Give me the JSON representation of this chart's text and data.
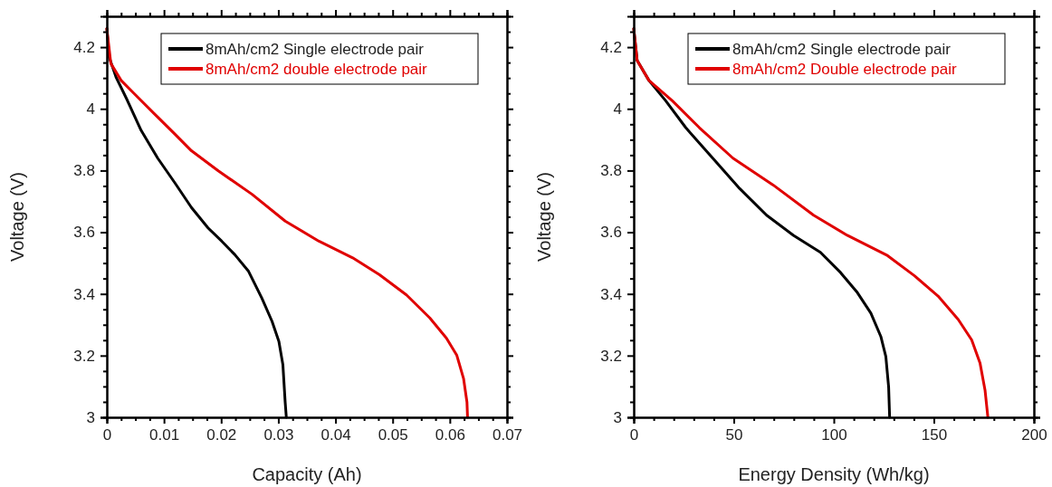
{
  "chart_data": [
    {
      "type": "line",
      "xlabel": "Capacity (Ah)",
      "ylabel": "Voltage (V)",
      "xlim": [
        0,
        0.07
      ],
      "ylim": [
        3,
        4.3
      ],
      "legend": "top right",
      "grid": false,
      "line_style": "solid",
      "xticks": [
        0,
        {
          "value": 0.0025,
          "label": null
        },
        {
          "value": 0.005,
          "label": null
        },
        {
          "value": 0.0075,
          "label": null
        },
        0.01,
        {
          "value": 0.0125,
          "label": null
        },
        {
          "value": 0.015,
          "label": null
        },
        {
          "value": 0.0175,
          "label": null
        },
        0.02,
        {
          "value": 0.0225,
          "label": null
        },
        {
          "value": 0.025,
          "label": null
        },
        {
          "value": 0.0275,
          "label": null
        },
        0.03,
        {
          "value": 0.0325,
          "label": null
        },
        {
          "value": 0.035,
          "label": null
        },
        {
          "value": 0.0375,
          "label": null
        },
        0.04,
        {
          "value": 0.0425,
          "label": null
        },
        {
          "value": 0.045,
          "label": null
        },
        {
          "value": 0.0475,
          "label": null
        },
        0.05,
        {
          "value": 0.0525,
          "label": null
        },
        {
          "value": 0.055,
          "label": null
        },
        {
          "value": 0.0575,
          "label": null
        },
        0.06,
        {
          "value": 0.0625,
          "label": null
        },
        {
          "value": 0.065,
          "label": null
        },
        {
          "value": 0.0675,
          "label": null
        },
        0.07
      ],
      "yticks": [
        3,
        {
          "value": 3.05,
          "label": null
        },
        {
          "value": 3.1,
          "label": null
        },
        {
          "value": 3.15,
          "label": null
        },
        3.2,
        {
          "value": 3.25,
          "label": null
        },
        {
          "value": 3.3,
          "label": null
        },
        {
          "value": 3.35,
          "label": null
        },
        3.4,
        {
          "value": 3.45,
          "label": null
        },
        {
          "value": 3.5,
          "label": null
        },
        {
          "value": 3.55,
          "label": null
        },
        3.6,
        {
          "value": 3.65,
          "label": null
        },
        {
          "value": 3.7,
          "label": null
        },
        {
          "value": 3.75,
          "label": null
        },
        3.8,
        {
          "value": 3.85,
          "label": null
        },
        {
          "value": 3.9,
          "label": null
        },
        {
          "value": 3.95,
          "label": null
        },
        4,
        {
          "value": 4.05,
          "label": null
        },
        {
          "value": 4.1,
          "label": null
        },
        {
          "value": 4.15,
          "label": null
        },
        4.2,
        {
          "value": 4.25,
          "label": null
        }
      ],
      "series": [
        {
          "name": "8mAh/cm2 Single electrode pair",
          "color": "#000000",
          "x": [
            0,
            0.0004,
            0.0016,
            0.0036,
            0.006,
            0.0089,
            0.0119,
            0.0148,
            0.0177,
            0.0201,
            0.0224,
            0.0248,
            0.0271,
            0.0289,
            0.0301,
            0.0308,
            0.0312,
            0.0314
          ],
          "values": [
            4.26,
            4.168,
            4.103,
            4.027,
            3.93,
            3.84,
            3.76,
            3.68,
            3.614,
            3.571,
            3.527,
            3.473,
            3.387,
            3.311,
            3.246,
            3.17,
            3.049,
            3.0
          ]
        },
        {
          "name": "8mAh/cm2 double electrode pair",
          "color": "#e00000",
          "x": [
            0,
            0.0007,
            0.0025,
            0.0048,
            0.0083,
            0.0119,
            0.0148,
            0.0195,
            0.0254,
            0.0312,
            0.0371,
            0.043,
            0.0477,
            0.0524,
            0.0565,
            0.0594,
            0.0612,
            0.0624,
            0.063,
            0.0631
          ],
          "values": [
            4.26,
            4.147,
            4.092,
            4.049,
            3.984,
            3.918,
            3.864,
            3.799,
            3.723,
            3.636,
            3.571,
            3.517,
            3.462,
            3.397,
            3.322,
            3.257,
            3.202,
            3.126,
            3.049,
            3.0
          ]
        }
      ]
    },
    {
      "type": "line",
      "xlabel": "Energy Density (Wh/kg)",
      "ylabel": "Voltage (V)",
      "xlim": [
        0,
        200
      ],
      "ylim": [
        3,
        4.3
      ],
      "legend": "top right",
      "grid": false,
      "line_style": "solid",
      "xticks": [
        0,
        {
          "value": 10,
          "label": null
        },
        {
          "value": 20,
          "label": null
        },
        {
          "value": 30,
          "label": null
        },
        {
          "value": 40,
          "label": null
        },
        50,
        {
          "value": 60,
          "label": null
        },
        {
          "value": 70,
          "label": null
        },
        {
          "value": 80,
          "label": null
        },
        {
          "value": 90,
          "label": null
        },
        100,
        {
          "value": 110,
          "label": null
        },
        {
          "value": 120,
          "label": null
        },
        {
          "value": 130,
          "label": null
        },
        {
          "value": 140,
          "label": null
        },
        150,
        {
          "value": 160,
          "label": null
        },
        {
          "value": 170,
          "label": null
        },
        {
          "value": 180,
          "label": null
        },
        {
          "value": 190,
          "label": null
        },
        200
      ],
      "yticks": [
        3,
        {
          "value": 3.05,
          "label": null
        },
        {
          "value": 3.1,
          "label": null
        },
        {
          "value": 3.15,
          "label": null
        },
        3.2,
        {
          "value": 3.25,
          "label": null
        },
        {
          "value": 3.3,
          "label": null
        },
        {
          "value": 3.35,
          "label": null
        },
        3.4,
        {
          "value": 3.45,
          "label": null
        },
        {
          "value": 3.5,
          "label": null
        },
        {
          "value": 3.55,
          "label": null
        },
        3.6,
        {
          "value": 3.65,
          "label": null
        },
        {
          "value": 3.7,
          "label": null
        },
        {
          "value": 3.75,
          "label": null
        },
        3.8,
        {
          "value": 3.85,
          "label": null
        },
        {
          "value": 3.9,
          "label": null
        },
        {
          "value": 3.95,
          "label": null
        },
        4,
        {
          "value": 4.05,
          "label": null
        },
        {
          "value": 4.1,
          "label": null
        },
        {
          "value": 4.15,
          "label": null
        },
        4.2,
        {
          "value": 4.25,
          "label": null
        }
      ],
      "series": [
        {
          "name": "8mAh/cm2 Single electrode pair",
          "color": "#000000",
          "x": [
            0,
            1.7,
            7.6,
            16,
            26,
            39.5,
            52.9,
            66.4,
            79.8,
            93.3,
            103.4,
            111.8,
            118.5,
            123.5,
            126,
            127.4,
            127.9
          ],
          "values": [
            4.26,
            4.157,
            4.092,
            4.026,
            3.939,
            3.84,
            3.742,
            3.655,
            3.59,
            3.535,
            3.469,
            3.404,
            3.338,
            3.262,
            3.197,
            3.098,
            3.0
          ]
        },
        {
          "name": "8mAh/cm2 Double electrode pair",
          "color": "#e00000",
          "x": [
            0,
            1.7,
            7.6,
            19.3,
            32.8,
            49.6,
            69.7,
            89.9,
            106.7,
            126.9,
            140.3,
            152.1,
            162.2,
            168.9,
            173.1,
            175.6,
            177
          ],
          "values": [
            4.26,
            4.157,
            4.092,
            4.026,
            3.939,
            3.84,
            3.753,
            3.655,
            3.59,
            3.524,
            3.459,
            3.393,
            3.317,
            3.251,
            3.175,
            3.087,
            3.0
          ]
        }
      ]
    }
  ]
}
